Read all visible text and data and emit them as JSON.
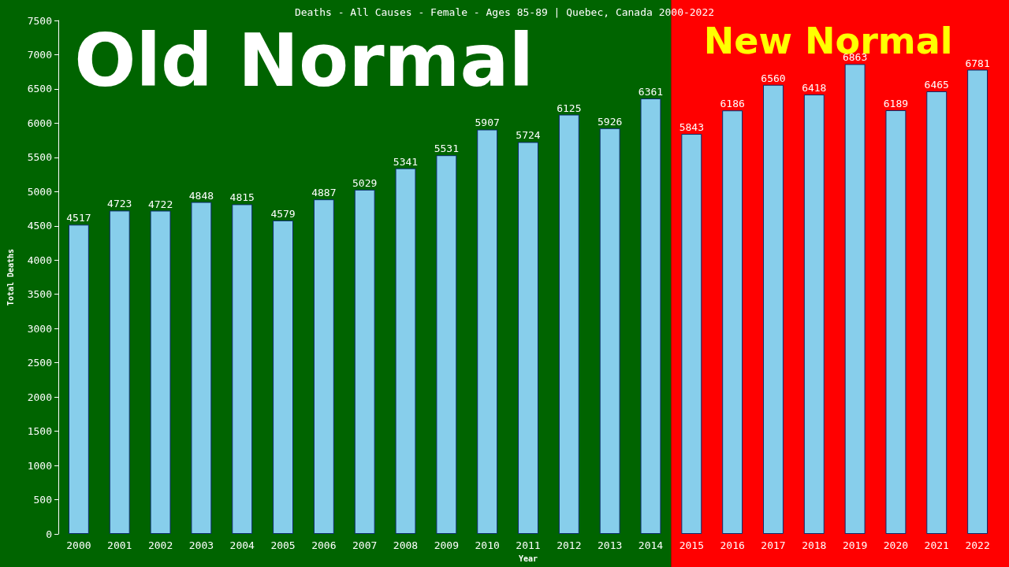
{
  "chart_data": {
    "type": "bar",
    "title": "Deaths - All Causes - Female - Ages 85-89 | Quebec, Canada 2000-2022",
    "xlabel": "Year",
    "ylabel": "Total Deaths",
    "categories": [
      "2000",
      "2001",
      "2002",
      "2003",
      "2004",
      "2005",
      "2006",
      "2007",
      "2008",
      "2009",
      "2010",
      "2011",
      "2012",
      "2013",
      "2014",
      "2015",
      "2016",
      "2017",
      "2018",
      "2019",
      "2020",
      "2021",
      "2022"
    ],
    "values": [
      4517,
      4723,
      4722,
      4848,
      4815,
      4579,
      4887,
      5029,
      5341,
      5531,
      5907,
      5724,
      6125,
      5926,
      6361,
      5843,
      6186,
      6560,
      6418,
      6863,
      6189,
      6465,
      6781
    ],
    "color": "#87ceeb",
    "data_labels": true,
    "grid": false,
    "ylim": [
      0,
      7500
    ],
    "yticks": [
      0,
      500,
      1000,
      1500,
      2000,
      2500,
      3000,
      3500,
      4000,
      4500,
      5000,
      5500,
      6000,
      6500,
      7000,
      7500
    ],
    "bands": [
      {
        "axis": "x",
        "from": "2000",
        "to": "2014",
        "label": "Old Normal",
        "color": "#006400"
      },
      {
        "axis": "x",
        "from": "2015",
        "to": "2022",
        "label": "New Normal",
        "color": "#ff0000"
      }
    ]
  }
}
